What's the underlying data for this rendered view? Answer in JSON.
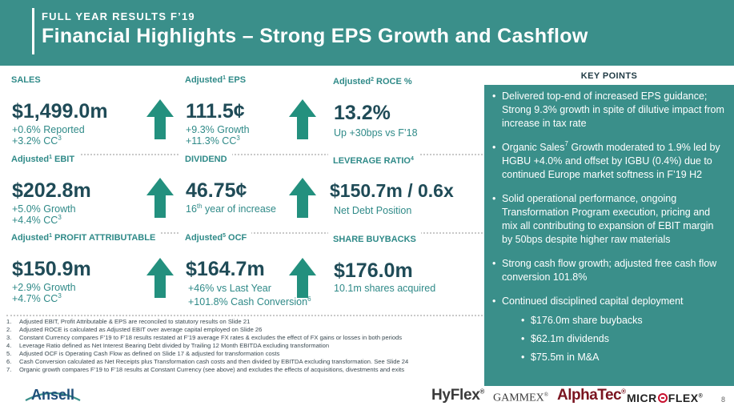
{
  "header": {
    "kicker": "FULL YEAR RESULTS F’19",
    "title": "Financial Highlights – Strong EPS Growth and Cashflow"
  },
  "metrics": {
    "sales": {
      "label": "SALES",
      "value": "$1,499.0m",
      "sub1": "+0.6% Reported",
      "sub2": "+3.2% CC",
      "sub2_sup": "3"
    },
    "eps": {
      "label": "Adjusted",
      "label_sup": "1",
      "label_tail": " EPS",
      "value": "111.5¢",
      "sub1": "+9.3% Growth",
      "sub2": "+11.3% CC",
      "sub2_sup": "3"
    },
    "roce": {
      "label": "Adjusted",
      "label_sup": "2",
      "label_tail": " ROCE %",
      "value": "13.2%",
      "sub1": "Up +30bps vs F’18"
    },
    "ebit": {
      "label": "Adjusted",
      "label_sup": "1",
      "label_tail": " EBIT",
      "value": "$202.8m",
      "sub1": "+5.0% Growth",
      "sub2": "+4.4% CC",
      "sub2_sup": "3"
    },
    "dividend": {
      "label": "DIVIDEND",
      "value": "46.75¢",
      "sub1_pre": "16",
      "sub1_sup": "th",
      "sub1": " year of increase"
    },
    "leverage": {
      "label": "LEVERAGE RATIO",
      "label_sup": "4",
      "value": "$150.7m / 0.6x",
      "sub1": "Net Debt Position"
    },
    "profit": {
      "label": "Adjusted",
      "label_sup": "1",
      "label_tail": " PROFIT ATTRIBUTABLE",
      "value": "$150.9m",
      "sub1": "+2.9% Growth",
      "sub2": "+4.7% CC",
      "sub2_sup": "3"
    },
    "ocf": {
      "label": "Adjusted",
      "label_sup": "5",
      "label_tail": " OCF",
      "value": "$164.7m",
      "sub1": "+46% vs Last Year",
      "sub2": "+101.8% Cash Conversion",
      "sub2_sup": "6"
    },
    "buyback": {
      "label": "SHARE BUYBACKS",
      "value": "$176.0m",
      "sub1": "10.1m shares acquired"
    }
  },
  "key_points": {
    "heading": "KEY POINTS",
    "bullet": "•",
    "items": [
      {
        "text": "Delivered top-end of increased EPS guidance; Strong 9.3% growth in spite of dilutive impact from increase in tax rate"
      },
      {
        "pre": "Organic Sales",
        "sup": "7",
        "text": " Growth moderated to 1.9% led by HGBU +4.0% and offset by IGBU (0.4%) due to continued Europe market softness in F’19 H2"
      },
      {
        "text": "Solid operational performance, ongoing Transformation Program execution, pricing and mix all contributing to expansion of EBIT margin by 50bps despite higher raw materials"
      },
      {
        "text": "Strong cash flow growth; adjusted free cash flow conversion 101.8%"
      },
      {
        "text": "Continued disciplined capital deployment"
      }
    ],
    "sub_items": [
      "$176.0m share buybacks",
      "$62.1m dividends",
      "$75.5m in M&A"
    ]
  },
  "footnotes": [
    {
      "n": "1.",
      "text": "Adjusted EBIT, Profit Attributable & EPS are reconciled to statutory results on Slide 21"
    },
    {
      "n": "2.",
      "text": "Adjusted ROCE is calculated as Adjusted EBIT over average capital employed on Slide 26"
    },
    {
      "n": "3.",
      "text": "Constant Currency compares F’19 to F’18 results restated at F’19 average FX rates & excludes the effect of FX gains or losses in both periods"
    },
    {
      "n": "4.",
      "text": "Leverage Ratio defined as Net Interest Bearing Debt divided by Trailing 12 Month EBITDA excluding transformation"
    },
    {
      "n": "5.",
      "text": "Adjusted OCF is Operating Cash Flow as defined on Slide 17 & adjusted for transformation costs"
    },
    {
      "n": "6.",
      "text": "Cash Conversion calculated as Net Receipts plus Transformation cash costs and then divided by EBITDA excluding transformation. See Slide 24"
    },
    {
      "n": "7.",
      "text": "Organic growth compares F’19 to F’18 results at Constant Currency (see above) and excludes the effects of acquisitions, divestments and exits"
    }
  ],
  "footer": {
    "logo": "Ansell",
    "brands": {
      "hyflex": "HyFlex",
      "hyflex_mark": "®",
      "gammex": "GAMMEX",
      "gammex_mark": "®",
      "alphatec": "AlphaTec",
      "alphatec_mark": "®",
      "microflex_a": "MICR",
      "microflex_b": "FLEX",
      "microflex_mark": "®"
    },
    "page": "8"
  },
  "colors": {
    "teal": "#3a8f8a",
    "teal_text": "#2f8a88",
    "navy": "#1f4b57",
    "arrow": "#23907e"
  }
}
